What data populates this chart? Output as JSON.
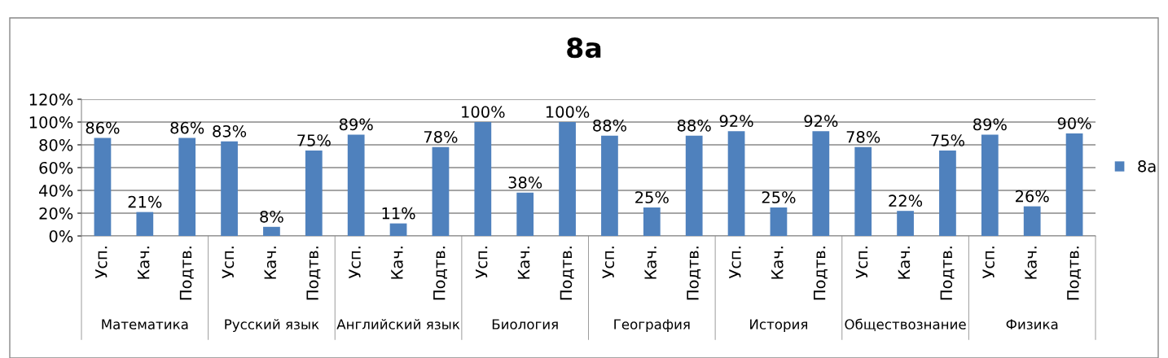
{
  "chart_data": {
    "type": "bar",
    "title": "8а",
    "categories": [
      "Усп.",
      "Кач.",
      "Подтв.",
      "Усп.",
      "Кач.",
      "Подтв.",
      "Усп.",
      "Кач.",
      "Подтв.",
      "Усп.",
      "Кач.",
      "Подтв.",
      "Усп.",
      "Кач.",
      "Подтв.",
      "Усп.",
      "Кач.",
      "Подтв.",
      "Усп.",
      "Кач.",
      "Подтв.",
      "Усп.",
      "Кач.",
      "Подтв."
    ],
    "series": [
      {
        "name": "8а",
        "color": "#4f81bd",
        "values": [
          86,
          21,
          86,
          83,
          8,
          75,
          89,
          11,
          78,
          100,
          38,
          100,
          88,
          25,
          88,
          92,
          25,
          92,
          78,
          22,
          75,
          89,
          26,
          90
        ],
        "value_labels": [
          "86%",
          "21%",
          "86%",
          "83%",
          "8%",
          "75%",
          "89%",
          "11%",
          "78%",
          "100%",
          "38%",
          "100%",
          "88%",
          "25%",
          "88%",
          "92%",
          "25%",
          "92%",
          "78%",
          "22%",
          "75%",
          "89%",
          "26%",
          "90%"
        ]
      }
    ],
    "annotations": [
      "Математика",
      "Русский язык",
      "Английский язык",
      "Биология",
      "География",
      "История",
      "Обществознание",
      "Физика"
    ],
    "ylim": [
      0,
      120
    ],
    "yticks": [
      {
        "value": 0,
        "label": "0%"
      },
      {
        "value": 20,
        "label": "20%"
      },
      {
        "value": 40,
        "label": "40%"
      },
      {
        "value": 60,
        "label": "60%"
      },
      {
        "value": 80,
        "label": "80%"
      },
      {
        "value": 100,
        "label": "100%"
      },
      {
        "value": 120,
        "label": "120%"
      }
    ],
    "grid": "y",
    "legend": "right"
  }
}
